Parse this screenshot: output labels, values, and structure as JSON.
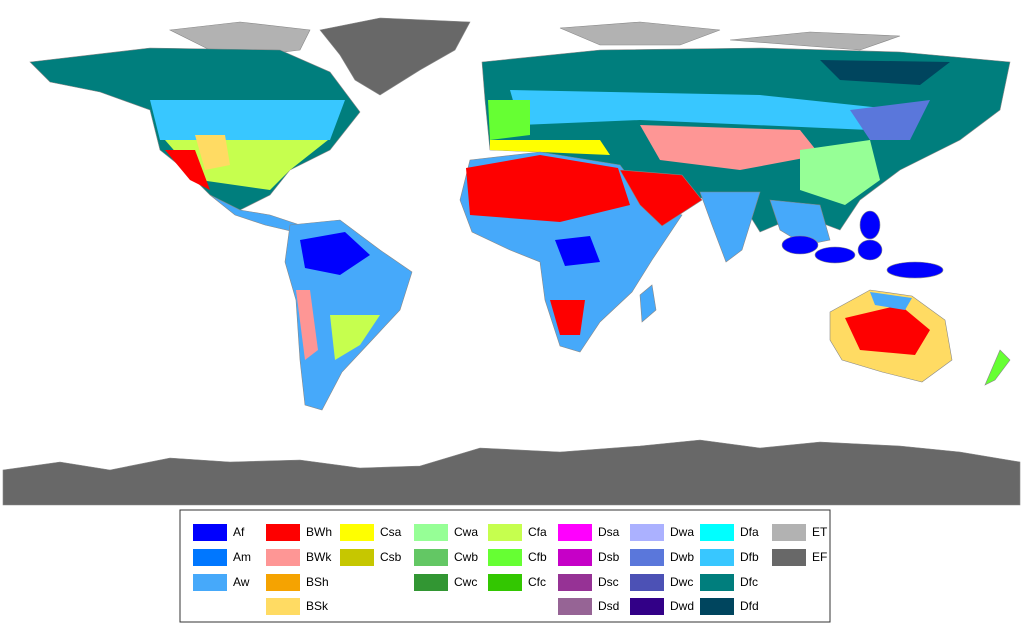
{
  "legend": {
    "columns": [
      [
        {
          "code": "Af",
          "color": "#0000fe"
        },
        {
          "code": "Am",
          "color": "#0077ff"
        },
        {
          "code": "Aw",
          "color": "#46a9fa"
        }
      ],
      [
        {
          "code": "BWh",
          "color": "#fe0000"
        },
        {
          "code": "BWk",
          "color": "#fe9695"
        },
        {
          "code": "BSh",
          "color": "#f5a301"
        },
        {
          "code": "BSk",
          "color": "#ffdb63"
        }
      ],
      [
        {
          "code": "Csa",
          "color": "#ffff00"
        },
        {
          "code": "Csb",
          "color": "#c6c700"
        }
      ],
      [
        {
          "code": "Cwa",
          "color": "#96ff96"
        },
        {
          "code": "Cwb",
          "color": "#63c764"
        },
        {
          "code": "Cwc",
          "color": "#329633"
        }
      ],
      [
        {
          "code": "Cfa",
          "color": "#c6ff4e"
        },
        {
          "code": "Cfb",
          "color": "#66ff33"
        },
        {
          "code": "Cfc",
          "color": "#33c701"
        }
      ],
      [
        {
          "code": "Dsa",
          "color": "#ff00fe"
        },
        {
          "code": "Dsb",
          "color": "#c600c7"
        },
        {
          "code": "Dsc",
          "color": "#963295"
        },
        {
          "code": "Dsd",
          "color": "#966495"
        }
      ],
      [
        {
          "code": "Dwa",
          "color": "#abb1ff"
        },
        {
          "code": "Dwb",
          "color": "#5a77db"
        },
        {
          "code": "Dwc",
          "color": "#4c51b5"
        },
        {
          "code": "Dwd",
          "color": "#320087"
        }
      ],
      [
        {
          "code": "Dfa",
          "color": "#00ffff"
        },
        {
          "code": "Dfb",
          "color": "#38c7ff"
        },
        {
          "code": "Dfc",
          "color": "#007e7d"
        },
        {
          "code": "Dfd",
          "color": "#00455e"
        }
      ],
      [
        {
          "code": "ET",
          "color": "#b2b2b2"
        },
        {
          "code": "EF",
          "color": "#686868"
        }
      ]
    ]
  }
}
